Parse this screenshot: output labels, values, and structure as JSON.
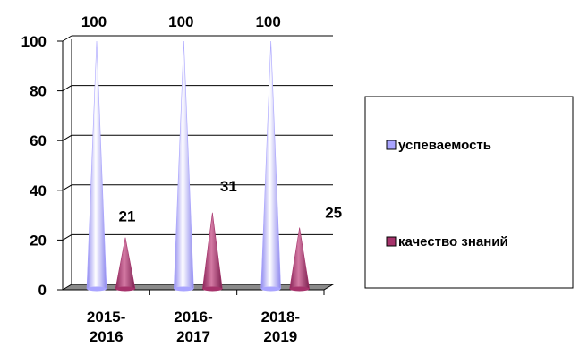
{
  "chart_data": {
    "type": "bar",
    "bar_shape": "cone",
    "categories": [
      "2015-\n2016",
      "2016-\n2017",
      "2018-\n2019"
    ],
    "series": [
      {
        "name": "успеваемость",
        "values": [
          100,
          100,
          100
        ],
        "color": "#a9a4ff"
      },
      {
        "name": "качество знаний",
        "values": [
          21,
          31,
          25
        ],
        "color": "#a6336b"
      }
    ],
    "data_labels": [
      [
        "100",
        "100",
        "100"
      ],
      [
        "21",
        "31",
        "25"
      ]
    ],
    "ylim": [
      0,
      100
    ],
    "y_ticks": [
      0,
      20,
      40,
      60,
      80,
      100
    ],
    "grid": true,
    "legend_position": "right"
  }
}
